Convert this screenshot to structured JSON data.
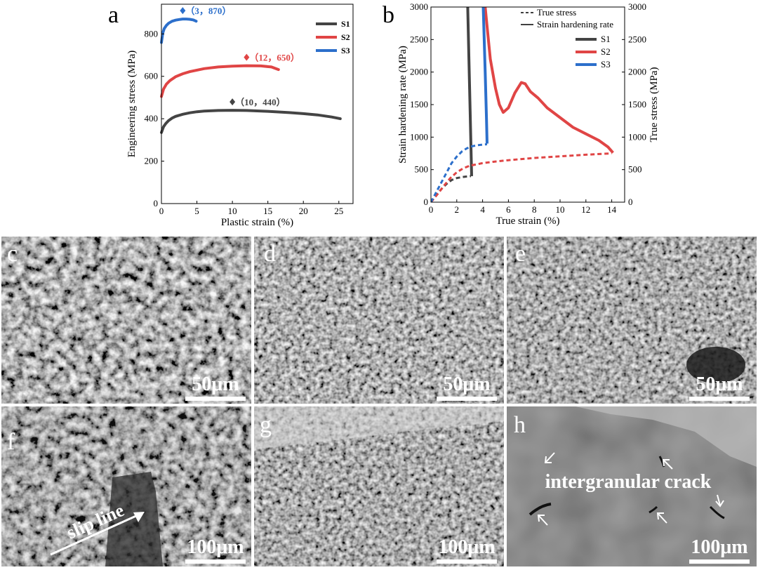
{
  "panel_letters": [
    "a",
    "b",
    "c",
    "d",
    "e",
    "f",
    "g",
    "h"
  ],
  "sem_labels": {
    "slip_line": "slip line",
    "intergranular_crack": "intergranular crack"
  },
  "scale_bars": {
    "c": "50μm",
    "d": "50μm",
    "e": "50μm",
    "f": "100μm",
    "g": "100μm",
    "h": "100μm"
  },
  "colors": {
    "S1": "#444444",
    "S2": "#e04545",
    "S3": "#2c6fcb"
  },
  "chart_data": [
    {
      "type": "line",
      "panel": "a",
      "xlabel": "Plastic strain (%)",
      "ylabel": "Engineering stress (MPa)",
      "xlim": [
        0,
        27
      ],
      "ylim": [
        0,
        940
      ],
      "xticks": [
        0,
        5,
        10,
        15,
        20,
        25
      ],
      "yticks": [
        0,
        200,
        400,
        600,
        800
      ],
      "legend_position": "top-right",
      "series": [
        {
          "name": "S1",
          "x": [
            0,
            0.3,
            0.6,
            1.0,
            1.5,
            2,
            3,
            4,
            5,
            6,
            8,
            10,
            12,
            15,
            18,
            20,
            22,
            24,
            25.2
          ],
          "y": [
            335,
            362,
            377,
            391,
            403,
            411,
            421,
            428,
            433,
            436,
            439,
            440,
            439,
            435,
            429,
            424,
            418,
            408,
            400
          ]
        },
        {
          "name": "S2",
          "x": [
            0,
            0.3,
            0.7,
            1.2,
            2,
            3,
            4,
            6,
            8,
            10,
            12,
            14,
            15.5,
            16.5
          ],
          "y": [
            505,
            540,
            563,
            580,
            598,
            612,
            622,
            636,
            644,
            648,
            650,
            649,
            644,
            632
          ]
        },
        {
          "name": "S3",
          "x": [
            0,
            0.2,
            0.4,
            0.7,
            1.0,
            1.5,
            2.0,
            2.5,
            3.0,
            3.5,
            4.0,
            4.5,
            4.9
          ],
          "y": [
            760,
            805,
            825,
            840,
            850,
            860,
            865,
            868,
            870,
            870,
            869,
            866,
            860
          ]
        }
      ],
      "annotations": [
        {
          "label": "（10，440）",
          "x": 10,
          "y": 440,
          "series": "S1"
        },
        {
          "label": "（12，650）",
          "x": 12,
          "y": 650,
          "series": "S2"
        },
        {
          "label": "（3，870）",
          "x": 3,
          "y": 870,
          "series": "S3"
        }
      ]
    },
    {
      "type": "line",
      "panel": "b",
      "xlabel": "True strain (%)",
      "ylabel": "Strain hardening rate (MPa)",
      "y2label": "True stress (MPa)",
      "xlim": [
        0,
        15
      ],
      "ylim": [
        0,
        3000
      ],
      "y2lim": [
        0,
        3000
      ],
      "xticks": [
        0,
        2,
        4,
        6,
        8,
        10,
        12,
        14
      ],
      "yticks": [
        0,
        500,
        1000,
        1500,
        2000,
        2500,
        3000
      ],
      "legend_position": "top-right",
      "legend_styles": [
        {
          "name": "True stress",
          "dash": "dashed"
        },
        {
          "name": "Strain hardening rate",
          "dash": "solid"
        }
      ],
      "series": [
        {
          "name": "S1",
          "kind": "strain_hardening_rate",
          "x": [
            2.85,
            3.15
          ],
          "y": [
            3000,
            400
          ]
        },
        {
          "name": "S2",
          "kind": "strain_hardening_rate",
          "x": [
            4.2,
            4.35,
            4.6,
            5.0,
            5.3,
            5.6,
            6.0,
            6.5,
            7.0,
            7.3,
            7.7,
            8.3,
            9.0,
            10.0,
            11.0,
            12.0,
            13.0,
            13.7,
            14.1
          ],
          "y": [
            3000,
            2700,
            2200,
            1750,
            1500,
            1380,
            1450,
            1680,
            1840,
            1820,
            1700,
            1600,
            1450,
            1300,
            1150,
            1050,
            950,
            850,
            760
          ]
        },
        {
          "name": "S3",
          "kind": "strain_hardening_rate",
          "x": [
            4.05,
            4.2,
            4.3,
            4.35
          ],
          "y": [
            3000,
            2000,
            1300,
            900
          ]
        },
        {
          "name": "S1",
          "kind": "true_stress",
          "x": [
            0,
            0.4,
            0.8,
            1.2,
            1.6,
            2.0,
            2.4,
            2.8,
            3.1
          ],
          "y": [
            0,
            100,
            200,
            280,
            340,
            370,
            385,
            395,
            400
          ]
        },
        {
          "name": "S2",
          "kind": "true_stress",
          "x": [
            0,
            0.5,
            1.0,
            1.5,
            2.0,
            2.5,
            3.0,
            4.0,
            5.0,
            6.0,
            8.0,
            10.0,
            12.0,
            14.0
          ],
          "y": [
            0,
            120,
            250,
            370,
            460,
            520,
            560,
            600,
            625,
            645,
            680,
            705,
            730,
            750
          ]
        },
        {
          "name": "S3",
          "kind": "true_stress",
          "x": [
            0,
            0.4,
            0.8,
            1.2,
            1.6,
            2.0,
            2.4,
            2.8,
            3.2,
            3.6,
            4.0,
            4.35
          ],
          "y": [
            0,
            150,
            300,
            450,
            600,
            700,
            780,
            830,
            860,
            875,
            885,
            890
          ]
        }
      ]
    }
  ]
}
